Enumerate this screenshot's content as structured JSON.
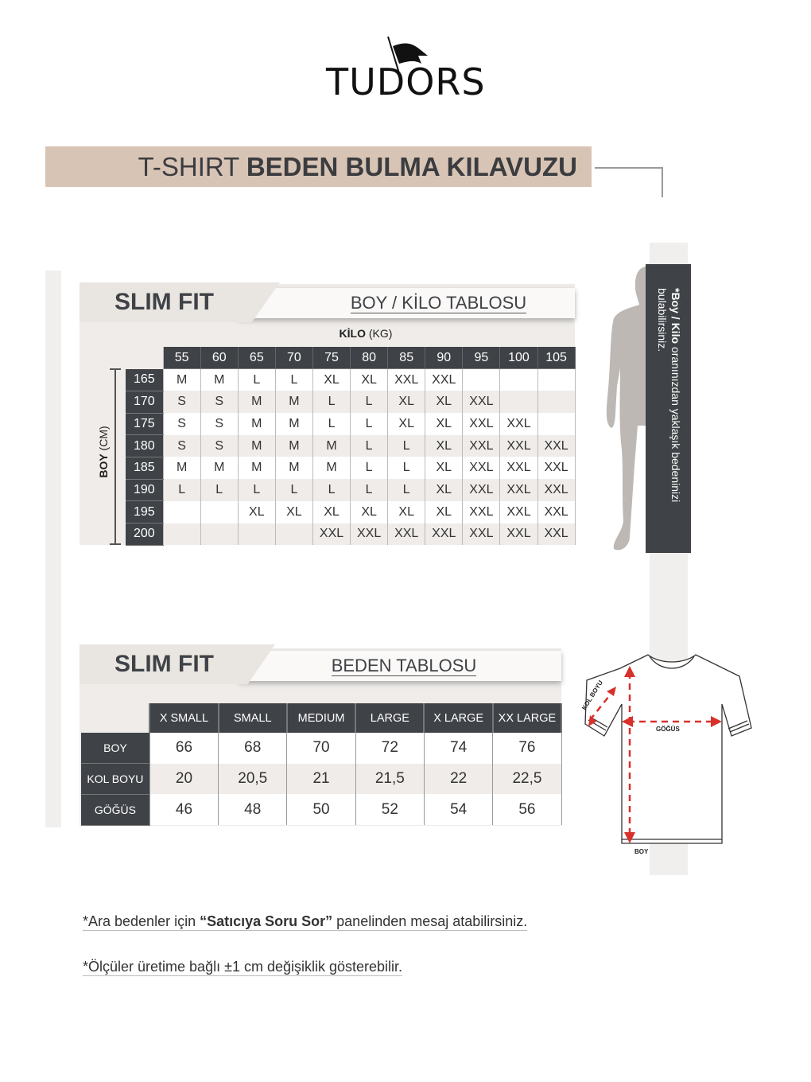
{
  "brand": {
    "logo": "TUDORS"
  },
  "title": {
    "light": "T-SHIRT",
    "bold": "BEDEN BULMA KILAVUZU"
  },
  "table1": {
    "fit": "SLIM FIT",
    "subtitle": "BOY / KİLO TABLOSU",
    "col_axis_bold": "KİLO",
    "col_axis_unit": "(KG)",
    "row_axis_bold": "BOY",
    "row_axis_unit": "(CM)",
    "columns": [
      "55",
      "60",
      "65",
      "70",
      "75",
      "80",
      "85",
      "90",
      "95",
      "100",
      "105"
    ],
    "rows": [
      {
        "boy": "165",
        "sizes": [
          "M",
          "M",
          "L",
          "L",
          "XL",
          "XL",
          "XXL",
          "XXL",
          "",
          "",
          ""
        ]
      },
      {
        "boy": "170",
        "sizes": [
          "S",
          "S",
          "M",
          "M",
          "L",
          "L",
          "XL",
          "XL",
          "XXL",
          "",
          ""
        ]
      },
      {
        "boy": "175",
        "sizes": [
          "S",
          "S",
          "M",
          "M",
          "L",
          "L",
          "XL",
          "XL",
          "XXL",
          "XXL",
          ""
        ]
      },
      {
        "boy": "180",
        "sizes": [
          "S",
          "S",
          "M",
          "M",
          "M",
          "L",
          "L",
          "XL",
          "XXL",
          "XXL",
          "XXL"
        ]
      },
      {
        "boy": "185",
        "sizes": [
          "M",
          "M",
          "M",
          "M",
          "M",
          "L",
          "L",
          "XL",
          "XXL",
          "XXL",
          "XXL"
        ]
      },
      {
        "boy": "190",
        "sizes": [
          "L",
          "L",
          "L",
          "L",
          "L",
          "L",
          "L",
          "XL",
          "XXL",
          "XXL",
          "XXL"
        ]
      },
      {
        "boy": "195",
        "sizes": [
          "",
          "",
          "XL",
          "XL",
          "XL",
          "XL",
          "XL",
          "XL",
          "XXL",
          "XXL",
          "XXL"
        ]
      },
      {
        "boy": "200",
        "sizes": [
          "",
          "",
          "",
          "",
          "XXL",
          "XXL",
          "XXL",
          "XXL",
          "XXL",
          "XXL",
          "XXL"
        ]
      }
    ]
  },
  "side_note": {
    "bold": "*Boy / Kilo",
    "text": " oranınızdan yaklaşık bedeninizi bulabilirsiniz."
  },
  "table2": {
    "fit": "SLIM FIT",
    "subtitle": "BEDEN TABLOSU",
    "columns": [
      "X SMALL",
      "SMALL",
      "MEDIUM",
      "LARGE",
      "X LARGE",
      "XX LARGE"
    ],
    "rows": [
      {
        "label": "BOY",
        "values": [
          "66",
          "68",
          "70",
          "72",
          "74",
          "76"
        ]
      },
      {
        "label": "KOL BOYU",
        "values": [
          "20",
          "20,5",
          "21",
          "21,5",
          "22",
          "22,5"
        ]
      },
      {
        "label": "GÖĞÜS",
        "values": [
          "46",
          "48",
          "50",
          "52",
          "54",
          "56"
        ]
      }
    ]
  },
  "diagram": {
    "kol_boyu": "KOL BOYU",
    "gogus": "GÖĞÜS",
    "boy": "BOY",
    "arrow_color": "#d8302a"
  },
  "notes": {
    "note1_pre": "*Ara bedenler için ",
    "note1_bold": "“Satıcıya Soru Sor”",
    "note1_post": " panelinden mesaj atabilirsiniz.",
    "note2": "*Ölçüler üretime bağlı ±1 cm değişiklik gösterebilir."
  },
  "colors": {
    "title_bar": "#d8c4b5",
    "dark": "#3f4246",
    "panel": "#efece9"
  }
}
